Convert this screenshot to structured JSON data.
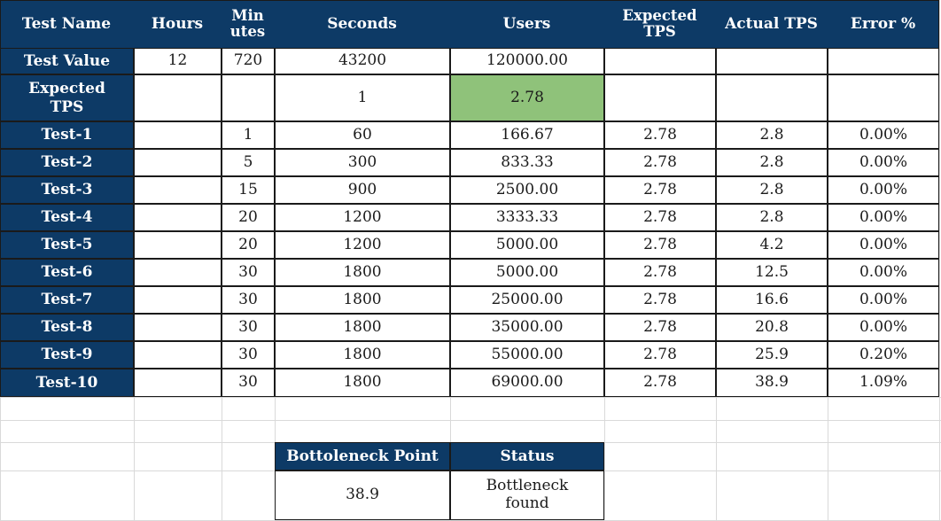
{
  "headers": [
    "Test Name",
    "Hours",
    "Min\nutes",
    "Seconds",
    "Users",
    "Expected\nTPS",
    "Actual TPS",
    "Error %"
  ],
  "test_value_row": {
    "label": "Test Value",
    "hours": "12",
    "minutes": "720",
    "seconds": "43200",
    "users": "120000.00",
    "expected_tps": "",
    "actual_tps": "",
    "error": ""
  },
  "expected_tps_row": {
    "label": "Expected\nTPS",
    "hours": "",
    "minutes": "",
    "seconds": "1",
    "users": "2.78",
    "expected_tps": "",
    "actual_tps": "",
    "error": "",
    "highlight_color": "#8fc27a"
  },
  "tests": [
    {
      "name": "Test-1",
      "hours": "",
      "minutes": "1",
      "seconds": "60",
      "users": "166.67",
      "expected_tps": "2.78",
      "actual_tps": "2.8",
      "error": "0.00%"
    },
    {
      "name": "Test-2",
      "hours": "",
      "minutes": "5",
      "seconds": "300",
      "users": "833.33",
      "expected_tps": "2.78",
      "actual_tps": "2.8",
      "error": "0.00%"
    },
    {
      "name": "Test-3",
      "hours": "",
      "minutes": "15",
      "seconds": "900",
      "users": "2500.00",
      "expected_tps": "2.78",
      "actual_tps": "2.8",
      "error": "0.00%"
    },
    {
      "name": "Test-4",
      "hours": "",
      "minutes": "20",
      "seconds": "1200",
      "users": "3333.33",
      "expected_tps": "2.78",
      "actual_tps": "2.8",
      "error": "0.00%"
    },
    {
      "name": "Test-5",
      "hours": "",
      "minutes": "20",
      "seconds": "1200",
      "users": "5000.00",
      "expected_tps": "2.78",
      "actual_tps": "4.2",
      "error": "0.00%"
    },
    {
      "name": "Test-6",
      "hours": "",
      "minutes": "30",
      "seconds": "1800",
      "users": "5000.00",
      "expected_tps": "2.78",
      "actual_tps": "12.5",
      "error": "0.00%"
    },
    {
      "name": "Test-7",
      "hours": "",
      "minutes": "30",
      "seconds": "1800",
      "users": "25000.00",
      "expected_tps": "2.78",
      "actual_tps": "16.6",
      "error": "0.00%"
    },
    {
      "name": "Test-8",
      "hours": "",
      "minutes": "30",
      "seconds": "1800",
      "users": "35000.00",
      "expected_tps": "2.78",
      "actual_tps": "20.8",
      "error": "0.00%"
    },
    {
      "name": "Test-9",
      "hours": "",
      "minutes": "30",
      "seconds": "1800",
      "users": "55000.00",
      "expected_tps": "2.78",
      "actual_tps": "25.9",
      "error": "0.20%"
    },
    {
      "name": "Test-10",
      "hours": "",
      "minutes": "30",
      "seconds": "1800",
      "users": "69000.00",
      "expected_tps": "2.78",
      "actual_tps": "38.9",
      "error": "1.09%"
    }
  ],
  "summary": {
    "bottleneck_header": "Bottoleneck Point",
    "status_header": "Status",
    "bottleneck_value": "38.9",
    "status_value": "Bottleneck\nfound"
  },
  "colors": {
    "header_bg": "#0d3a66",
    "header_text": "#ffffff",
    "highlight": "#8fc27a",
    "gridline": "#d9d9d9"
  }
}
